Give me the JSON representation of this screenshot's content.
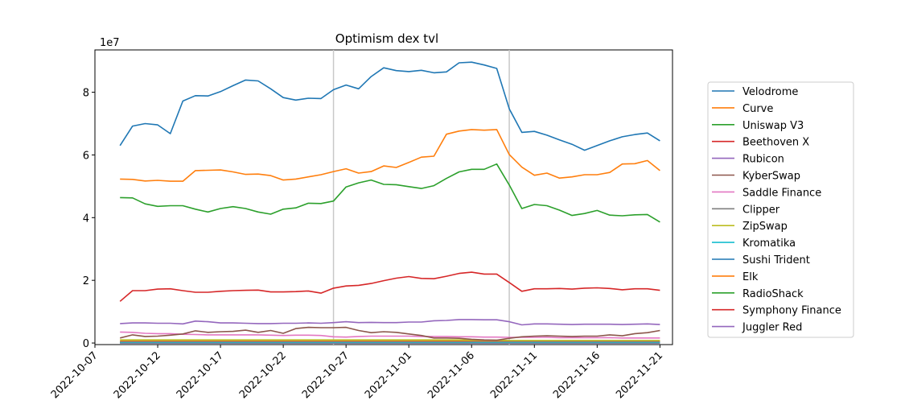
{
  "chart_data": {
    "type": "line",
    "title": "Optimism dex tvl",
    "xlabel": "",
    "ylabel": "",
    "y_offset_label": "1e7",
    "y_multiplier": 10000000,
    "x_start": "2022-10-09",
    "x_end": "2022-11-21",
    "xlim": [
      "2022-10-07",
      "2022-11-22"
    ],
    "ylim": [
      -500000,
      93500000
    ],
    "x_ticks": [
      "2022-10-07",
      "2022-10-12",
      "2022-10-17",
      "2022-10-22",
      "2022-10-27",
      "2022-11-01",
      "2022-11-06",
      "2022-11-11",
      "2022-11-16",
      "2022-11-21"
    ],
    "y_ticks": [
      0,
      20000000,
      40000000,
      60000000,
      80000000
    ],
    "y_tick_labels": [
      "0",
      "2",
      "4",
      "6",
      "8"
    ],
    "vlines": [
      "2022-10-26",
      "2022-11-09"
    ],
    "vline_color": "#c8c8c8",
    "grid": false,
    "legend_position": "right-outside",
    "series": [
      {
        "name": "Velodrome",
        "color": "#1f77b4",
        "values": [
          63000000,
          69200000,
          70000000,
          69600000,
          66800000,
          77200000,
          78900000,
          78800000,
          80200000,
          82100000,
          83900000,
          83600000,
          81100000,
          78300000,
          77500000,
          78100000,
          78000000,
          80800000,
          82300000,
          81100000,
          85000000,
          87800000,
          86900000,
          86600000,
          87000000,
          86200000,
          86500000,
          89400000,
          89600000,
          88700000,
          87600000,
          74700000,
          67200000,
          67500000,
          66300000,
          64800000,
          63400000,
          61500000,
          63000000,
          64500000,
          65800000,
          66500000,
          67000000,
          64500000
        ]
      },
      {
        "name": "Curve",
        "color": "#ff7f0e",
        "values": [
          52300000,
          52200000,
          51700000,
          51900000,
          51600000,
          51600000,
          55000000,
          55100000,
          55200000,
          54600000,
          53800000,
          53900000,
          53400000,
          52000000,
          52300000,
          53000000,
          53700000,
          54700000,
          55600000,
          54200000,
          54700000,
          56500000,
          56000000,
          57600000,
          59300000,
          59600000,
          66600000,
          67600000,
          68100000,
          67900000,
          68100000,
          60100000,
          56100000,
          53500000,
          54200000,
          52600000,
          53000000,
          53700000,
          53700000,
          54400000,
          57100000,
          57200000,
          58200000,
          55000000
        ]
      },
      {
        "name": "Uniswap V3",
        "color": "#2ca02c",
        "values": [
          46400000,
          46300000,
          44400000,
          43600000,
          43800000,
          43800000,
          42700000,
          41800000,
          42900000,
          43500000,
          42900000,
          41800000,
          41100000,
          42700000,
          43100000,
          44600000,
          44500000,
          45300000,
          49800000,
          51100000,
          52000000,
          50600000,
          50500000,
          49900000,
          49300000,
          50200000,
          52500000,
          54600000,
          55400000,
          55400000,
          57100000,
          50400000,
          42900000,
          44200000,
          43800000,
          42400000,
          40700000,
          41300000,
          42300000,
          40800000,
          40600000,
          40900000,
          41000000,
          38600000
        ]
      },
      {
        "name": "Beethoven X",
        "color": "#d62728",
        "values": [
          13300000,
          16700000,
          16700000,
          17200000,
          17300000,
          16700000,
          16200000,
          16200000,
          16500000,
          16700000,
          16800000,
          16900000,
          16300000,
          16300000,
          16400000,
          16600000,
          15900000,
          17500000,
          18200000,
          18400000,
          19000000,
          19900000,
          20700000,
          21200000,
          20600000,
          20500000,
          21300000,
          22200000,
          22600000,
          22000000,
          22000000,
          19300000,
          16500000,
          17300000,
          17300000,
          17400000,
          17200000,
          17500000,
          17600000,
          17400000,
          17000000,
          17300000,
          17300000,
          16800000
        ]
      },
      {
        "name": "Rubicon",
        "color": "#9467bd",
        "values": [
          6200000,
          6400000,
          6400000,
          6300000,
          6300000,
          6100000,
          7000000,
          6800000,
          6400000,
          6400000,
          6300000,
          6200000,
          6200000,
          6300000,
          6300000,
          6400000,
          6300000,
          6500000,
          6800000,
          6500000,
          6600000,
          6500000,
          6500000,
          6700000,
          6700000,
          7100000,
          7200000,
          7500000,
          7500000,
          7400000,
          7400000,
          6800000,
          5800000,
          6100000,
          6100000,
          6000000,
          5900000,
          6000000,
          6000000,
          6000000,
          5900000,
          6000000,
          6100000,
          5900000
        ]
      },
      {
        "name": "KyberSwap",
        "color": "#8c564b",
        "values": [
          1600000,
          2600000,
          2100000,
          2200000,
          2500000,
          2900000,
          3900000,
          3400000,
          3600000,
          3700000,
          4100000,
          3400000,
          4000000,
          3100000,
          4600000,
          5000000,
          4900000,
          4900000,
          5000000,
          4000000,
          3300000,
          3600000,
          3400000,
          2900000,
          2400000,
          1600000,
          1600000,
          1500000,
          1200000,
          1000000,
          900000,
          1500000,
          2000000,
          2200000,
          2300000,
          2200000,
          2100000,
          2200000,
          2200000,
          2600000,
          2300000,
          3000000,
          3300000,
          4000000
        ]
      },
      {
        "name": "Saddle Finance",
        "color": "#e377c2",
        "values": [
          3500000,
          3400000,
          3100000,
          3000000,
          3000000,
          2800000,
          2700000,
          2600000,
          2600000,
          2600000,
          2600000,
          2600000,
          2500000,
          2400000,
          2500000,
          2500000,
          2400000,
          2000000,
          1900000,
          2100000,
          2200000,
          2200000,
          2200000,
          2200000,
          2100000,
          2100000,
          2100000,
          2000000,
          2000000,
          1900000,
          1900000,
          1800000,
          1800000,
          1800000,
          1800000,
          1700000,
          1700000,
          1700000,
          1700000,
          1700000,
          1600000,
          1600000,
          1600000,
          1600000
        ]
      },
      {
        "name": "Clipper",
        "color": "#7f7f7f",
        "values": [
          400000,
          400000,
          400000,
          400000,
          400000,
          400000,
          400000,
          400000,
          400000,
          400000,
          400000,
          400000,
          400000,
          400000,
          400000,
          400000,
          400000,
          400000,
          400000,
          400000,
          400000,
          400000,
          400000,
          400000,
          400000,
          400000,
          400000,
          400000,
          400000,
          400000,
          400000,
          400000,
          400000,
          400000,
          400000,
          400000,
          400000,
          400000,
          400000,
          400000,
          400000,
          400000,
          400000,
          400000
        ]
      },
      {
        "name": "ZipSwap",
        "color": "#bcbd22",
        "values": [
          1000000,
          1000000,
          1000000,
          1000000,
          1000000,
          1000000,
          1000000,
          1000000,
          1000000,
          1000000,
          1000000,
          1000000,
          1000000,
          1000000,
          1000000,
          1000000,
          1000000,
          1000000,
          1000000,
          1000000,
          1000000,
          1000000,
          1000000,
          1000000,
          1000000,
          1000000,
          1000000,
          1000000,
          900000,
          900000,
          900000,
          800000,
          800000,
          800000,
          800000,
          800000,
          800000,
          800000,
          800000,
          800000,
          800000,
          800000,
          800000,
          800000
        ]
      },
      {
        "name": "Kromatika",
        "color": "#17becf",
        "values": [
          200000,
          200000,
          200000,
          200000,
          200000,
          200000,
          200000,
          200000,
          200000,
          200000,
          200000,
          200000,
          200000,
          200000,
          200000,
          200000,
          200000,
          200000,
          200000,
          200000,
          200000,
          200000,
          200000,
          200000,
          200000,
          200000,
          200000,
          200000,
          200000,
          200000,
          200000,
          200000,
          200000,
          200000,
          200000,
          200000,
          200000,
          200000,
          200000,
          200000,
          200000,
          200000,
          200000,
          200000
        ]
      },
      {
        "name": "Sushi Trident",
        "color": "#1f77b4",
        "values": [
          100000,
          100000,
          100000,
          100000,
          100000,
          100000,
          100000,
          100000,
          100000,
          100000,
          100000,
          100000,
          100000,
          100000,
          100000,
          100000,
          100000,
          100000,
          100000,
          100000,
          100000,
          100000,
          100000,
          100000,
          100000,
          100000,
          100000,
          100000,
          100000,
          100000,
          100000,
          100000,
          100000,
          100000,
          100000,
          100000,
          100000,
          100000,
          100000,
          100000,
          100000,
          100000,
          100000,
          100000
        ]
      },
      {
        "name": "Elk",
        "color": "#ff7f0e",
        "values": [
          600000,
          600000,
          600000,
          600000,
          600000,
          600000,
          600000,
          600000,
          600000,
          600000,
          600000,
          600000,
          600000,
          600000,
          600000,
          600000,
          600000,
          600000,
          600000,
          600000,
          600000,
          600000,
          600000,
          600000,
          600000,
          600000,
          600000,
          600000,
          600000,
          600000,
          600000,
          500000,
          500000,
          500000,
          500000,
          500000,
          500000,
          500000,
          500000,
          500000,
          500000,
          500000,
          500000,
          500000
        ]
      },
      {
        "name": "RadioShack",
        "color": "#2ca02c",
        "values": [
          300000,
          300000,
          300000,
          300000,
          300000,
          300000,
          300000,
          300000,
          300000,
          300000,
          300000,
          300000,
          300000,
          300000,
          300000,
          300000,
          300000,
          300000,
          300000,
          300000,
          300000,
          300000,
          300000,
          300000,
          300000,
          300000,
          300000,
          300000,
          300000,
          300000,
          300000,
          300000,
          300000,
          300000,
          300000,
          300000,
          300000,
          300000,
          300000,
          300000,
          300000,
          300000,
          300000,
          300000
        ]
      },
      {
        "name": "Symphony Finance",
        "color": "#d62728",
        "values": [
          50000,
          50000,
          50000,
          50000,
          50000,
          50000,
          50000,
          50000,
          50000,
          50000,
          50000,
          50000,
          50000,
          50000,
          50000,
          50000,
          50000,
          50000,
          50000,
          50000,
          50000,
          50000,
          50000,
          50000,
          50000,
          50000,
          50000,
          50000,
          50000,
          50000,
          50000,
          50000,
          50000,
          50000,
          50000,
          50000,
          50000,
          50000,
          50000,
          50000,
          50000,
          50000,
          50000,
          50000
        ]
      },
      {
        "name": "Juggler Red",
        "color": "#9467bd",
        "values": [
          20000,
          20000,
          20000,
          20000,
          20000,
          20000,
          20000,
          20000,
          20000,
          20000,
          20000,
          20000,
          20000,
          20000,
          20000,
          20000,
          20000,
          20000,
          20000,
          20000,
          20000,
          20000,
          20000,
          20000,
          20000,
          20000,
          20000,
          20000,
          20000,
          20000,
          20000,
          20000,
          20000,
          20000,
          20000,
          20000,
          20000,
          20000,
          20000,
          20000,
          20000,
          20000,
          20000,
          20000
        ]
      }
    ]
  }
}
